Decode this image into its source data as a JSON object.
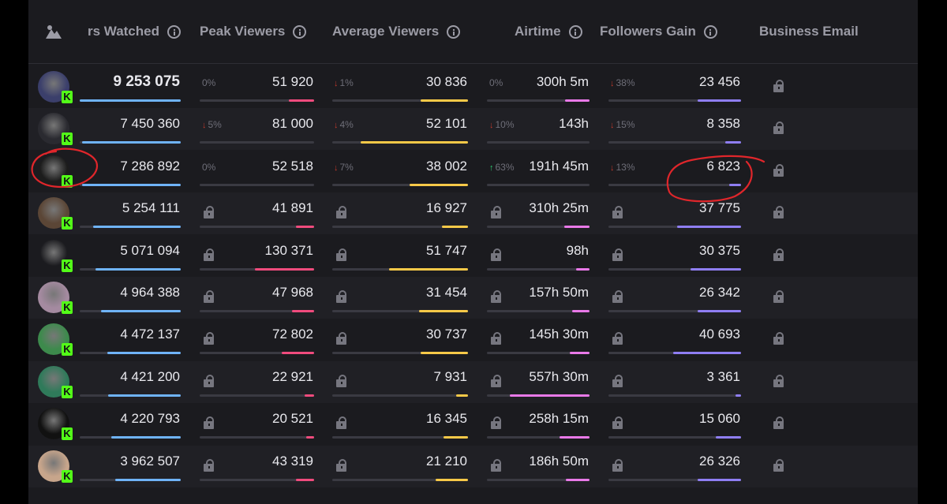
{
  "header": {
    "hours_watched": "rs Watched",
    "peak_viewers": "Peak Viewers",
    "average_viewers": "Average Viewers",
    "airtime": "Airtime",
    "followers_gain": "Followers Gain",
    "business_email": "Business Email"
  },
  "colors": {
    "hours": "#6fb3f7",
    "peak": "#f04b7d",
    "avg": "#f7c948",
    "airtime": "#e979e8",
    "followers": "#8f7ef3"
  },
  "badge_letter": "K",
  "rows": [
    {
      "hours": "9 253 075",
      "hours_fill": 1.0,
      "peak": "51 920",
      "peak_pct": "0%",
      "peak_dir": "none",
      "peak_fill": 0.22,
      "avg": "30 836",
      "avg_pct": "1%",
      "avg_dir": "down",
      "avg_fill": 0.35,
      "air": "300h 5m",
      "air_pct": "0%",
      "air_dir": "none",
      "air_fill": 0.24,
      "fol": "23 456",
      "fol_pct": "38%",
      "fol_dir": "down",
      "fol_fill": 0.33,
      "locked": false
    },
    {
      "hours": "7 450 360",
      "hours_fill": 0.98,
      "peak": "81 000",
      "peak_pct": "5%",
      "peak_dir": "down",
      "peak_fill": 0.0,
      "avg": "52 101",
      "avg_pct": "4%",
      "avg_dir": "down",
      "avg_fill": 0.79,
      "air": "143h",
      "air_pct": "10%",
      "air_dir": "down",
      "air_fill": 0.0,
      "fol": "8 358",
      "fol_pct": "15%",
      "fol_dir": "down",
      "fol_fill": 0.12,
      "locked": false
    },
    {
      "hours": "7 286 892",
      "hours_fill": 0.98,
      "peak": "52 518",
      "peak_pct": "0%",
      "peak_dir": "none",
      "peak_fill": 0.0,
      "avg": "38 002",
      "avg_pct": "7%",
      "avg_dir": "down",
      "avg_fill": 0.43,
      "air": "191h 45m",
      "air_pct": "63%",
      "air_dir": "up",
      "air_fill": 0.0,
      "fol": "6 823",
      "fol_pct": "13%",
      "fol_dir": "down",
      "fol_fill": 0.09,
      "locked": false
    },
    {
      "hours": "5 254 111",
      "hours_fill": 0.87,
      "peak": "41 891",
      "peak_fill": 0.16,
      "avg": "16 927",
      "avg_fill": 0.19,
      "air": "310h 25m",
      "air_fill": 0.25,
      "fol": "37 775",
      "fol_fill": 0.48,
      "locked": true
    },
    {
      "hours": "5 071 094",
      "hours_fill": 0.84,
      "peak": "130 371",
      "peak_fill": 0.52,
      "avg": "51 747",
      "avg_fill": 0.58,
      "air": "98h",
      "air_fill": 0.13,
      "fol": "30 375",
      "fol_fill": 0.38,
      "locked": true
    },
    {
      "hours": "4 964 388",
      "hours_fill": 0.79,
      "peak": "47 968",
      "peak_fill": 0.19,
      "avg": "31 454",
      "avg_fill": 0.36,
      "air": "157h 50m",
      "air_fill": 0.17,
      "fol": "26 342",
      "fol_fill": 0.33,
      "locked": true
    },
    {
      "hours": "4 472 137",
      "hours_fill": 0.73,
      "peak": "72 802",
      "peak_fill": 0.28,
      "avg": "30 737",
      "avg_fill": 0.35,
      "air": "145h 30m",
      "air_fill": 0.19,
      "fol": "40 693",
      "fol_fill": 0.51,
      "locked": true
    },
    {
      "hours": "4 421 200",
      "hours_fill": 0.72,
      "peak": "22 921",
      "peak_fill": 0.08,
      "avg": "7 931",
      "avg_fill": 0.09,
      "air": "557h 30m",
      "air_fill": 0.78,
      "fol": "3 361",
      "fol_fill": 0.04,
      "locked": true
    },
    {
      "hours": "4 220 793",
      "hours_fill": 0.69,
      "peak": "20 521",
      "peak_fill": 0.07,
      "avg": "16 345",
      "avg_fill": 0.18,
      "air": "258h 15m",
      "air_fill": 0.29,
      "fol": "15 060",
      "fol_fill": 0.19,
      "locked": true
    },
    {
      "hours": "3 962 507",
      "hours_fill": 0.65,
      "peak": "43 319",
      "peak_fill": 0.16,
      "avg": "21 210",
      "avg_fill": 0.24,
      "air": "186h 50m",
      "air_fill": 0.23,
      "fol": "26 326",
      "fol_fill": 0.33,
      "locked": true
    }
  ]
}
